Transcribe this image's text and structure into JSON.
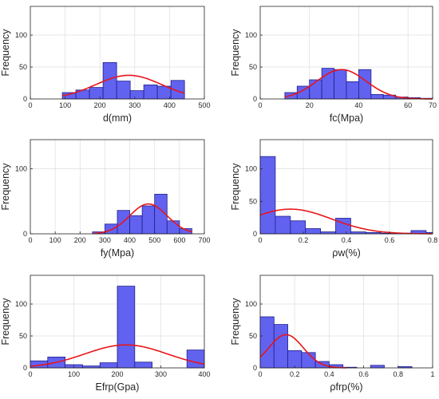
{
  "figure": {
    "colors": {
      "bar_fill": "#6262f0",
      "bar_edge": "#1f1f8c",
      "curve": "#e8151b",
      "grid": "#dedede",
      "axis": "#262626"
    }
  },
  "chart_data": [
    {
      "type": "bar",
      "grid": true,
      "xlabel": "d(mm)",
      "ylabel": "Frequency",
      "xlim": [
        0,
        500
      ],
      "ylim": [
        0,
        145
      ],
      "xticks": [
        0,
        100,
        200,
        300,
        400,
        500
      ],
      "yticks": [
        0,
        50,
        100
      ],
      "bins": [
        {
          "x0": 92,
          "x1": 131,
          "count": 10
        },
        {
          "x0": 131,
          "x1": 170,
          "count": 14
        },
        {
          "x0": 170,
          "x1": 209,
          "count": 18
        },
        {
          "x0": 209,
          "x1": 248,
          "count": 57
        },
        {
          "x0": 248,
          "x1": 287,
          "count": 28
        },
        {
          "x0": 287,
          "x1": 326,
          "count": 13
        },
        {
          "x0": 326,
          "x1": 365,
          "count": 22
        },
        {
          "x0": 365,
          "x1": 404,
          "count": 20
        },
        {
          "x0": 404,
          "x1": 443,
          "count": 29
        }
      ],
      "fit_curve": {
        "mean": 283,
        "std": 95,
        "peak": 37,
        "from": 92,
        "to": 443
      }
    },
    {
      "type": "bar",
      "grid": true,
      "xlabel": "fc(Mpa)",
      "ylabel": "Frequency",
      "xlim": [
        0,
        70
      ],
      "ylim": [
        0,
        145
      ],
      "xticks": [
        0,
        20,
        40,
        60,
        70
      ],
      "yticks": [
        0,
        50,
        100
      ],
      "bins": [
        {
          "x0": 10,
          "x1": 15,
          "count": 10
        },
        {
          "x0": 15,
          "x1": 20,
          "count": 20
        },
        {
          "x0": 20,
          "x1": 25,
          "count": 30
        },
        {
          "x0": 25,
          "x1": 30,
          "count": 48
        },
        {
          "x0": 30,
          "x1": 35,
          "count": 46
        },
        {
          "x0": 35,
          "x1": 40,
          "count": 27
        },
        {
          "x0": 40,
          "x1": 45,
          "count": 46
        },
        {
          "x0": 45,
          "x1": 50,
          "count": 7
        },
        {
          "x0": 50,
          "x1": 55,
          "count": 6
        },
        {
          "x0": 55,
          "x1": 60,
          "count": 3
        },
        {
          "x0": 60,
          "x1": 65,
          "count": 2
        },
        {
          "x0": 65,
          "x1": 70,
          "count": 1
        }
      ],
      "fit_curve": {
        "mean": 33,
        "std": 10,
        "peak": 46,
        "from": 10,
        "to": 70
      }
    },
    {
      "type": "bar",
      "grid": true,
      "xlabel": "fy(Mpa)",
      "ylabel": "Frequency",
      "xlim": [
        0,
        700
      ],
      "ylim": [
        0,
        145
      ],
      "xticks": [
        0,
        100,
        200,
        300,
        400,
        500,
        600,
        700
      ],
      "yticks": [
        0,
        100
      ],
      "bins": [
        {
          "x0": 250,
          "x1": 300,
          "count": 3
        },
        {
          "x0": 300,
          "x1": 350,
          "count": 15
        },
        {
          "x0": 350,
          "x1": 400,
          "count": 36
        },
        {
          "x0": 400,
          "x1": 450,
          "count": 28
        },
        {
          "x0": 450,
          "x1": 500,
          "count": 43
        },
        {
          "x0": 500,
          "x1": 550,
          "count": 61
        },
        {
          "x0": 550,
          "x1": 600,
          "count": 20
        },
        {
          "x0": 600,
          "x1": 650,
          "count": 8
        }
      ],
      "fit_curve": {
        "mean": 475,
        "std": 75,
        "peak": 46,
        "from": 255,
        "to": 650
      }
    },
    {
      "type": "bar",
      "grid": true,
      "xlabel": "ρw(%)",
      "ylabel": "Frequency",
      "xlim": [
        0,
        0.8
      ],
      "ylim": [
        0,
        145
      ],
      "xticks": [
        0,
        0.2,
        0.4,
        0.6,
        0.8
      ],
      "yticks": [
        0,
        50,
        100
      ],
      "bins": [
        {
          "x0": 0.0,
          "x1": 0.07,
          "count": 119
        },
        {
          "x0": 0.07,
          "x1": 0.14,
          "count": 27
        },
        {
          "x0": 0.14,
          "x1": 0.21,
          "count": 20
        },
        {
          "x0": 0.21,
          "x1": 0.28,
          "count": 8
        },
        {
          "x0": 0.28,
          "x1": 0.35,
          "count": 3
        },
        {
          "x0": 0.35,
          "x1": 0.42,
          "count": 24
        },
        {
          "x0": 0.42,
          "x1": 0.49,
          "count": 3
        },
        {
          "x0": 0.49,
          "x1": 0.56,
          "count": 2
        },
        {
          "x0": 0.56,
          "x1": 0.63,
          "count": 1
        },
        {
          "x0": 0.63,
          "x1": 0.7,
          "count": 1
        },
        {
          "x0": 0.7,
          "x1": 0.77,
          "count": 5
        },
        {
          "x0": 0.77,
          "x1": 0.8,
          "count": 2
        }
      ],
      "fit_curve": {
        "mean": 0.14,
        "std": 0.19,
        "peak": 38,
        "from": 0,
        "to": 0.8
      }
    },
    {
      "type": "bar",
      "grid": true,
      "xlabel": "Efrp(Gpa)",
      "ylabel": "Frequency",
      "xlim": [
        0,
        400
      ],
      "ylim": [
        0,
        145
      ],
      "xticks": [
        0,
        100,
        200,
        300,
        400
      ],
      "yticks": [
        0,
        50,
        100
      ],
      "bins": [
        {
          "x0": 0,
          "x1": 40,
          "count": 11
        },
        {
          "x0": 40,
          "x1": 80,
          "count": 17
        },
        {
          "x0": 80,
          "x1": 120,
          "count": 5
        },
        {
          "x0": 120,
          "x1": 160,
          "count": 3
        },
        {
          "x0": 160,
          "x1": 200,
          "count": 8
        },
        {
          "x0": 200,
          "x1": 240,
          "count": 128
        },
        {
          "x0": 240,
          "x1": 280,
          "count": 9
        },
        {
          "x0": 280,
          "x1": 320,
          "count": 0
        },
        {
          "x0": 320,
          "x1": 360,
          "count": 0
        },
        {
          "x0": 360,
          "x1": 400,
          "count": 28
        }
      ],
      "fit_curve": {
        "mean": 220,
        "std": 95,
        "peak": 36,
        "from": 0,
        "to": 400
      }
    },
    {
      "type": "bar",
      "grid": true,
      "xlabel": "ρfrp(%)",
      "ylabel": "Frequency",
      "xlim": [
        0,
        1
      ],
      "ylim": [
        0,
        145
      ],
      "xticks": [
        0,
        0.2,
        0.4,
        0.6,
        0.8,
        1
      ],
      "yticks": [
        0,
        50,
        100
      ],
      "bins": [
        {
          "x0": 0.0,
          "x1": 0.08,
          "count": 80
        },
        {
          "x0": 0.08,
          "x1": 0.16,
          "count": 68
        },
        {
          "x0": 0.16,
          "x1": 0.24,
          "count": 27
        },
        {
          "x0": 0.24,
          "x1": 0.32,
          "count": 24
        },
        {
          "x0": 0.32,
          "x1": 0.4,
          "count": 10
        },
        {
          "x0": 0.4,
          "x1": 0.48,
          "count": 5
        },
        {
          "x0": 0.48,
          "x1": 0.56,
          "count": 1
        },
        {
          "x0": 0.56,
          "x1": 0.64,
          "count": 0
        },
        {
          "x0": 0.64,
          "x1": 0.72,
          "count": 4
        },
        {
          "x0": 0.72,
          "x1": 0.8,
          "count": 0
        },
        {
          "x0": 0.8,
          "x1": 0.88,
          "count": 2
        }
      ],
      "fit_curve": {
        "mean": 0.15,
        "std": 0.1,
        "peak": 52,
        "from": 0,
        "to": 0.5
      }
    }
  ]
}
